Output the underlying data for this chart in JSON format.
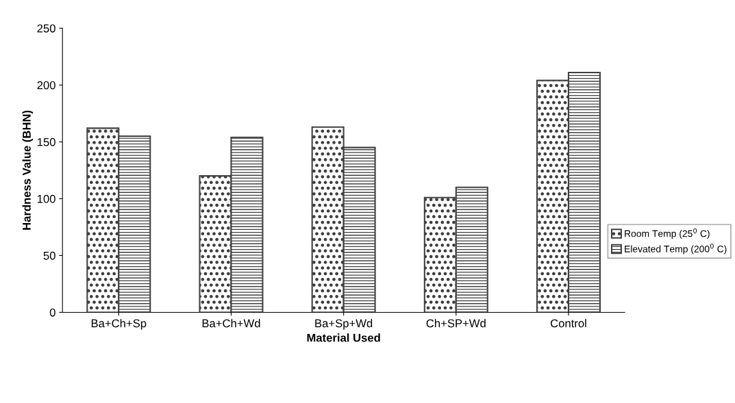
{
  "chart_data": {
    "type": "bar",
    "xlabel": "Material Used",
    "ylabel": "Hardness Value (BHN)",
    "categories": [
      "Ba+Ch+Sp",
      "Ba+Ch+Wd",
      "Ba+Sp+Wd",
      "Ch+SP+Wd",
      "Control"
    ],
    "series": [
      {
        "name": "Room Temp (25$^{0}$ C)",
        "color": "#404040",
        "values": [
          162,
          120,
          163,
          101,
          204
        ]
      },
      {
        "name": "Elevated Temp (200$^{0}$ C)",
        "color": "#404040",
        "values": [
          155,
          154,
          145,
          110,
          211
        ]
      }
    ],
    "ylim": [
      0,
      250
    ],
    "yticks": [
      0,
      50,
      100,
      150,
      200,
      250
    ],
    "grid": false,
    "legend": "right"
  }
}
